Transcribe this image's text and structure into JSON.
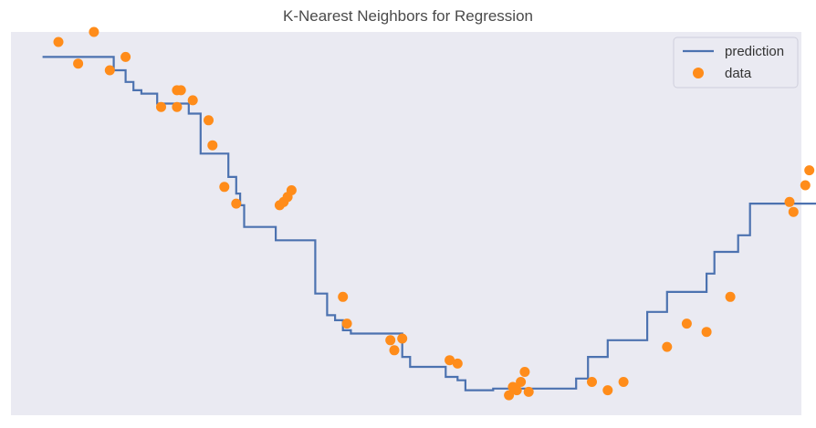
{
  "chart_data": {
    "type": "line",
    "title": "K-Nearest Neighbors for Regression",
    "xlabel": "",
    "ylabel": "",
    "xlim": [
      0,
      10
    ],
    "ylim": [
      -1.15,
      1.15
    ],
    "grid": false,
    "legend_position": "top-right",
    "background_color": "#eaeaf2",
    "series": [
      {
        "name": "prediction",
        "kind": "line",
        "color": "#4c72b0",
        "x": [
          0.4,
          1.3,
          1.3,
          1.45,
          1.45,
          1.55,
          1.55,
          1.65,
          1.65,
          1.85,
          1.85,
          2.25,
          2.25,
          2.4,
          2.4,
          2.75,
          2.75,
          2.85,
          2.85,
          2.9,
          2.9,
          2.95,
          2.95,
          3.35,
          3.35,
          3.85,
          3.85,
          4.0,
          4.0,
          4.1,
          4.1,
          4.2,
          4.2,
          4.3,
          4.3,
          4.95,
          4.95,
          5.05,
          5.05,
          5.5,
          5.5,
          5.65,
          5.65,
          5.75,
          5.75,
          6.1,
          6.1,
          7.15,
          7.15,
          7.3,
          7.3,
          7.55,
          7.55,
          8.05,
          8.05,
          8.3,
          8.3,
          8.8,
          8.8,
          8.9,
          8.9,
          9.2,
          9.2,
          9.35,
          9.35,
          9.45,
          9.45,
          10.4
        ],
        "y": [
          1.0,
          1.0,
          0.92,
          0.92,
          0.85,
          0.85,
          0.8,
          0.8,
          0.78,
          0.78,
          0.72,
          0.72,
          0.66,
          0.66,
          0.42,
          0.42,
          0.28,
          0.28,
          0.18,
          0.18,
          0.11,
          0.11,
          -0.02,
          -0.02,
          -0.1,
          -0.1,
          -0.42,
          -0.42,
          -0.55,
          -0.55,
          -0.58,
          -0.58,
          -0.64,
          -0.64,
          -0.66,
          -0.66,
          -0.8,
          -0.8,
          -0.86,
          -0.86,
          -0.92,
          -0.92,
          -0.94,
          -0.94,
          -1.0,
          -1.0,
          -0.99,
          -0.99,
          -0.93,
          -0.93,
          -0.8,
          -0.8,
          -0.7,
          -0.7,
          -0.53,
          -0.53,
          -0.41,
          -0.41,
          -0.3,
          -0.3,
          -0.17,
          -0.17,
          -0.07,
          -0.07,
          0.12,
          0.12,
          0.12,
          0.12
        ]
      },
      {
        "name": "data",
        "kind": "scatter",
        "color": "#ff8c1a",
        "x": [
          0.6,
          0.85,
          1.05,
          1.25,
          1.45,
          1.9,
          2.1,
          2.1,
          2.15,
          2.3,
          2.5,
          2.55,
          2.7,
          2.85,
          3.4,
          3.45,
          3.5,
          3.55,
          4.2,
          4.25,
          4.8,
          4.85,
          4.95,
          5.55,
          5.65,
          6.3,
          6.35,
          6.4,
          6.45,
          6.5,
          6.55,
          7.35,
          7.55,
          7.75,
          8.3,
          8.55,
          8.8,
          9.1,
          9.85,
          9.9,
          10.05,
          10.1
        ],
        "y": [
          1.09,
          0.96,
          1.15,
          0.92,
          1.0,
          0.7,
          0.8,
          0.7,
          0.8,
          0.74,
          0.62,
          0.47,
          0.22,
          0.12,
          0.11,
          0.13,
          0.16,
          0.2,
          -0.44,
          -0.6,
          -0.7,
          -0.76,
          -0.69,
          -0.82,
          -0.84,
          -1.03,
          -0.98,
          -1.0,
          -0.95,
          -0.89,
          -1.01,
          -0.95,
          -1.0,
          -0.95,
          -0.74,
          -0.6,
          -0.65,
          -0.44,
          0.13,
          0.07,
          0.23,
          0.32
        ]
      }
    ]
  }
}
